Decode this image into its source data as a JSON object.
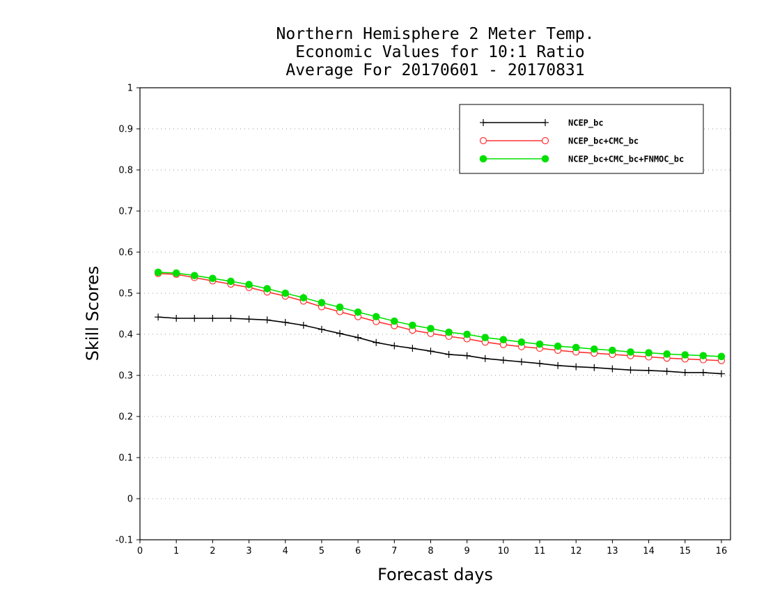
{
  "chart_data": {
    "type": "line",
    "title": [
      "Northern Hemisphere 2 Meter Temp.",
      " Economic Values for 10:1 Ratio",
      "Average For 20170601 - 20170831"
    ],
    "xlabel": "Forecast days",
    "ylabel": "Skill Scores",
    "xlim": [
      0,
      16.25
    ],
    "ylim": [
      -0.1,
      1
    ],
    "xticks": [
      0,
      1,
      2,
      3,
      4,
      5,
      6,
      7,
      8,
      9,
      10,
      11,
      12,
      13,
      14,
      15,
      16
    ],
    "xtick_labels": [
      "0",
      "1",
      "2",
      "3",
      "4",
      "5",
      "6",
      "7",
      "8",
      "9",
      "10",
      "11",
      "12",
      "13",
      "14",
      "15",
      "16"
    ],
    "yticks": [
      -0.1,
      0,
      0.1,
      0.2,
      0.3,
      0.4,
      0.5,
      0.6,
      0.7,
      0.8,
      0.9,
      1
    ],
    "ytick_labels": [
      "-0.1",
      "0",
      "0.1",
      "0.2",
      "0.3",
      "0.4",
      "0.5",
      "0.6",
      "0.7",
      "0.8",
      "0.9",
      "1"
    ],
    "grid": true,
    "legend_position": "top-right",
    "x": [
      0.5,
      1,
      1.5,
      2,
      2.5,
      3,
      3.5,
      4,
      4.5,
      5,
      5.5,
      6,
      6.5,
      7,
      7.5,
      8,
      8.5,
      9,
      9.5,
      10,
      10.5,
      11,
      11.5,
      12,
      12.5,
      13,
      13.5,
      14,
      14.5,
      15,
      15.5,
      16
    ],
    "series": [
      {
        "name": "NCEP_bc",
        "color": "#000000",
        "marker": "plus",
        "values": [
          0.442,
          0.439,
          0.439,
          0.439,
          0.439,
          0.437,
          0.435,
          0.429,
          0.422,
          0.412,
          0.402,
          0.392,
          0.38,
          0.372,
          0.366,
          0.359,
          0.351,
          0.348,
          0.341,
          0.337,
          0.333,
          0.329,
          0.324,
          0.321,
          0.319,
          0.316,
          0.313,
          0.312,
          0.31,
          0.307,
          0.307,
          0.304
        ]
      },
      {
        "name": "NCEP_bc+CMC_bc",
        "color": "#ff3030",
        "marker": "open-circle",
        "values": [
          0.548,
          0.546,
          0.538,
          0.53,
          0.522,
          0.514,
          0.503,
          0.493,
          0.481,
          0.467,
          0.455,
          0.443,
          0.431,
          0.421,
          0.41,
          0.402,
          0.395,
          0.389,
          0.381,
          0.375,
          0.37,
          0.366,
          0.361,
          0.357,
          0.354,
          0.351,
          0.348,
          0.345,
          0.342,
          0.34,
          0.338,
          0.336
        ]
      },
      {
        "name": "NCEP_bc+CMC_bc+FNMOC_bc",
        "color": "#00e000",
        "marker": "filled-circle",
        "values": [
          0.551,
          0.549,
          0.543,
          0.536,
          0.529,
          0.521,
          0.511,
          0.5,
          0.489,
          0.477,
          0.466,
          0.454,
          0.443,
          0.432,
          0.422,
          0.414,
          0.405,
          0.4,
          0.392,
          0.387,
          0.381,
          0.376,
          0.371,
          0.368,
          0.364,
          0.361,
          0.357,
          0.355,
          0.352,
          0.35,
          0.348,
          0.346
        ]
      }
    ]
  }
}
